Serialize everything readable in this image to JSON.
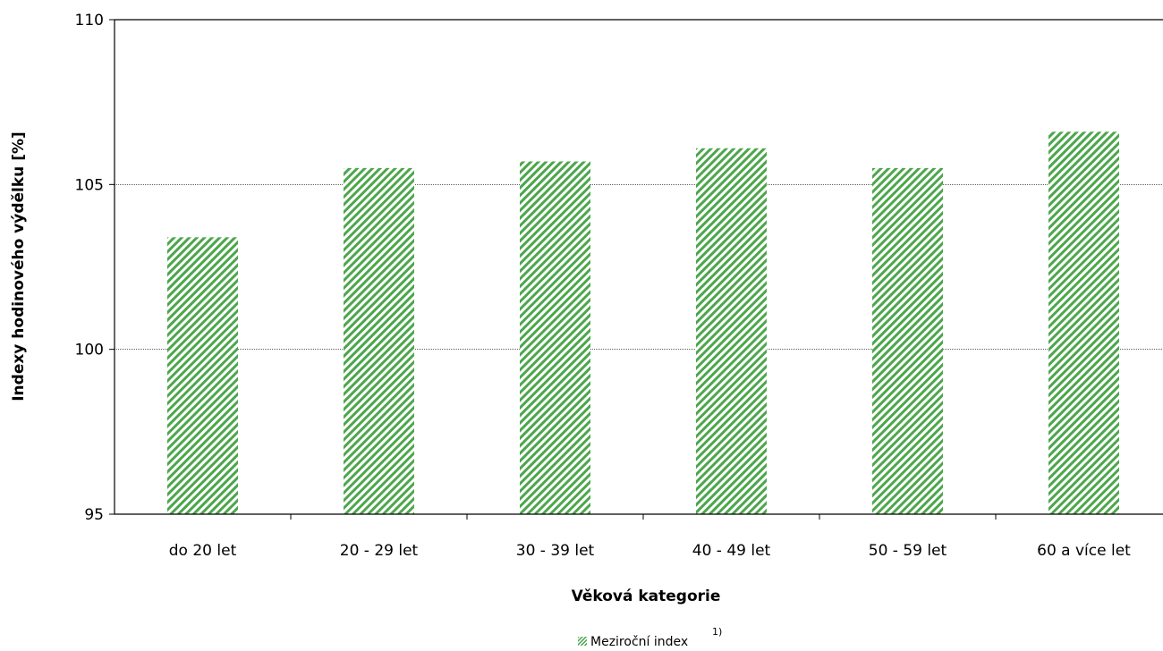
{
  "chart_data": {
    "type": "bar",
    "categories": [
      "do 20 let",
      "20 - 29 let",
      "30 - 39 let",
      "40 - 49 let",
      "50 - 59 let",
      "60 a více let"
    ],
    "series": [
      {
        "name": "Meziroční index",
        "values": [
          103.4,
          105.5,
          105.7,
          106.1,
          105.5,
          106.6
        ]
      }
    ],
    "title": "",
    "xlabel": "Věková kategorie",
    "ylabel": "Indexy hodinového výdělku [%]",
    "ylim": [
      95,
      110
    ],
    "yticks": [
      95,
      100,
      105,
      110
    ],
    "ytick_labels": [
      "95",
      "100",
      "105",
      "110"
    ],
    "grid": true,
    "legend": {
      "position": "bottom-center",
      "label": "Meziroční index",
      "footnote_mark": "1)"
    },
    "colors": {
      "bar": "#4da64d",
      "gridline": "#000000",
      "axis": "#000000"
    }
  }
}
